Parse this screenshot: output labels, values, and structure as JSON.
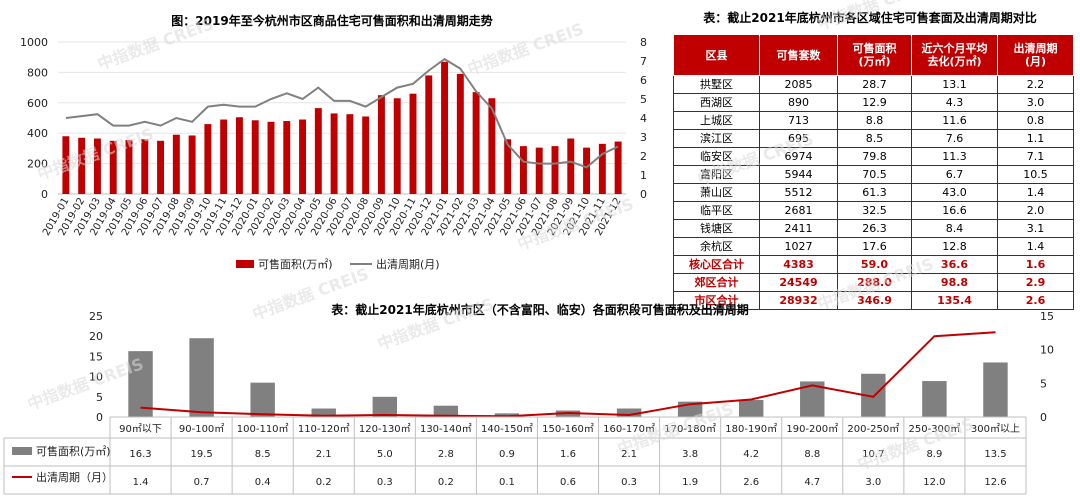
{
  "chart_data": [
    {
      "type": "bar+line",
      "title": "图：2019年至今杭州市区商品住宅可售面积和出清周期走势",
      "categories": [
        "2019-01",
        "2019-02",
        "2019-03",
        "2019-04",
        "2019-05",
        "2019-06",
        "2019-07",
        "2019-08",
        "2019-09",
        "2019-10",
        "2019-11",
        "2019-12",
        "2020-01",
        "2020-02",
        "2020-03",
        "2020-04",
        "2020-05",
        "2020-06",
        "2020-07",
        "2020-08",
        "2020-09",
        "2020-10",
        "2020-11",
        "2020-12",
        "2021-01",
        "2021-02",
        "2021-03",
        "2021-04",
        "2021-05",
        "2021-06",
        "2021-07",
        "2021-08",
        "2021-09",
        "2021-10",
        "2021-11",
        "2021-12"
      ],
      "series": [
        {
          "name": "可售面积(万㎡)",
          "axis": "left",
          "color": "#c00000",
          "values": [
            380,
            370,
            365,
            350,
            355,
            360,
            350,
            390,
            385,
            460,
            490,
            505,
            485,
            475,
            480,
            490,
            565,
            530,
            525,
            510,
            650,
            630,
            660,
            780,
            870,
            790,
            670,
            630,
            360,
            315,
            305,
            315,
            365,
            305,
            330,
            345
          ]
        },
        {
          "name": "出清周期(月)",
          "axis": "right",
          "color": "#808080",
          "values": [
            4.0,
            4.1,
            4.2,
            3.6,
            3.6,
            3.8,
            3.6,
            4.0,
            3.8,
            4.6,
            4.7,
            4.6,
            4.6,
            5.0,
            5.3,
            5.0,
            5.6,
            4.9,
            4.9,
            4.6,
            5.1,
            5.6,
            5.8,
            6.5,
            7.1,
            6.6,
            5.4,
            4.5,
            2.6,
            1.7,
            1.6,
            1.6,
            1.7,
            1.4,
            2.1,
            2.5
          ]
        }
      ],
      "ylim_left": [
        0,
        1000
      ],
      "yticks_left": [
        "1000",
        "800",
        "600",
        "400",
        "200",
        "0"
      ],
      "ylim_right": [
        0,
        8
      ],
      "yticks_right": [
        "8",
        "7",
        "6",
        "5",
        "4",
        "3",
        "2",
        "1",
        "0"
      ],
      "legend": [
        "可售面积(万㎡)",
        "出清周期(月)"
      ],
      "legend_position": "bottom"
    },
    {
      "type": "bar+line",
      "title": "表：截止2021年底杭州市区（不含富阳、临安）各面积段可售面积及出清周期",
      "categories": [
        "90㎡以下",
        "90-100㎡",
        "100-110㎡",
        "110-120㎡",
        "120-130㎡",
        "130-140㎡",
        "140-150㎡",
        "150-160㎡",
        "160-170㎡",
        "170-180㎡",
        "180-190㎡",
        "190-200㎡",
        "200-250㎡",
        "250-300㎡",
        "300㎡以上"
      ],
      "series": [
        {
          "name": "可售面积(万㎡)",
          "axis": "left",
          "color": "#808080",
          "values": [
            16.3,
            19.5,
            8.5,
            2.1,
            5.0,
            2.8,
            0.9,
            1.6,
            2.1,
            3.8,
            4.2,
            8.8,
            10.7,
            8.9,
            13.5
          ]
        },
        {
          "name": "出清周期（月）",
          "axis": "right",
          "color": "#c00000",
          "values": [
            1.4,
            0.7,
            0.4,
            0.2,
            0.3,
            0.2,
            0.1,
            0.6,
            0.3,
            1.9,
            2.6,
            4.7,
            3.0,
            12.0,
            12.6
          ]
        }
      ],
      "value_labels_area": [
        "16.3",
        "19.5",
        "8.5",
        "2.1",
        "5.0",
        "2.8",
        "0.9",
        "1.6",
        "2.1",
        "3.8",
        "4.2",
        "8.8",
        "10.7",
        "8.9",
        "13.5"
      ],
      "value_labels_cycle": [
        "1.4",
        "0.7",
        "0.4",
        "0.2",
        "0.3",
        "0.2",
        "0.1",
        "0.6",
        "0.3",
        "1.9",
        "2.6",
        "4.7",
        "3.0",
        "12.0",
        "12.6"
      ],
      "ylim_left": [
        0,
        25
      ],
      "yticks_left": [
        "25",
        "20",
        "15",
        "10",
        "5",
        "0"
      ],
      "ylim_right": [
        0,
        15
      ],
      "yticks_right": [
        "15",
        "10",
        "5",
        "0"
      ],
      "legend": [
        "可售面积(万㎡)",
        "出清周期（月）"
      ],
      "legend_position": "table-bottom"
    }
  ],
  "table": {
    "title": "表：截止2021年底杭州市各区域住宅可售套面及出清周期对比",
    "headers": [
      "区县",
      "可售套数",
      "可售面积\n(万㎡)",
      "近六个月平均\n去化(万㎡)",
      "出清周期\n(月)"
    ],
    "rows": [
      [
        "拱墅区",
        "2085",
        "28.7",
        "13.1",
        "2.2"
      ],
      [
        "西湖区",
        "890",
        "12.9",
        "4.3",
        "3.0"
      ],
      [
        "上城区",
        "713",
        "8.8",
        "11.6",
        "0.8"
      ],
      [
        "滨江区",
        "695",
        "8.5",
        "7.6",
        "1.1"
      ],
      [
        "临安区",
        "6974",
        "79.8",
        "11.3",
        "7.1"
      ],
      [
        "富阳区",
        "5944",
        "70.5",
        "6.7",
        "10.5"
      ],
      [
        "萧山区",
        "5512",
        "61.3",
        "43.0",
        "1.4"
      ],
      [
        "临平区",
        "2681",
        "32.5",
        "16.6",
        "2.0"
      ],
      [
        "钱塘区",
        "2411",
        "26.3",
        "8.4",
        "3.1"
      ],
      [
        "余杭区",
        "1027",
        "17.6",
        "12.8",
        "1.4"
      ]
    ],
    "totals": [
      [
        "核心区合计",
        "4383",
        "59.0",
        "36.6",
        "1.6"
      ],
      [
        "郊区合计",
        "24549",
        "288.0",
        "98.8",
        "2.9"
      ],
      [
        "市区合计",
        "28932",
        "346.9",
        "135.4",
        "2.6"
      ]
    ],
    "header_color": "#c00000"
  },
  "watermark": "中指数据 CREIS"
}
